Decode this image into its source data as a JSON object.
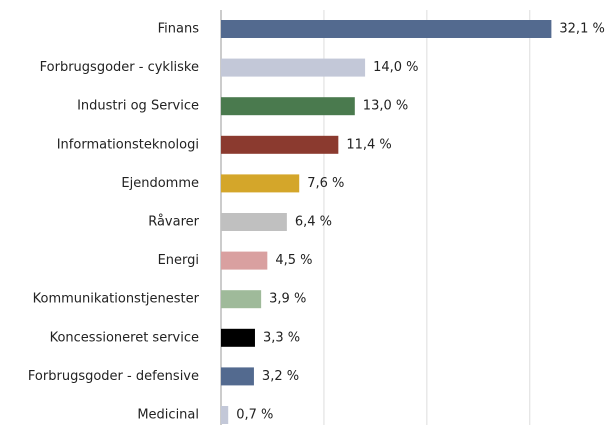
{
  "chart_data": {
    "type": "bar",
    "orientation": "horizontal",
    "categories": [
      "Finans",
      "Forbrugsgoder - cykliske",
      "Industri og Service",
      "Informationsteknologi",
      "Ejendomme",
      "Råvarer",
      "Energi",
      "Kommunikationstjenester",
      "Koncessioneret service",
      "Forbrugsgoder - defensive",
      "Medicinal"
    ],
    "values": [
      32.1,
      14.0,
      13.0,
      11.4,
      7.6,
      6.4,
      4.5,
      3.9,
      3.3,
      3.2,
      0.7
    ],
    "value_labels": [
      "32,1 %",
      "14,0 %",
      "13,0 %",
      "11,4 %",
      "7,6 %",
      "6,4 %",
      "4,5 %",
      "3,9 %",
      "3,3 %",
      "3,2 %",
      "0,7 %"
    ],
    "colors": [
      "#536a8f",
      "#c3c8d8",
      "#4a7a4e",
      "#8b3a2f",
      "#d4a62a",
      "#c0c0c0",
      "#d9a0a0",
      "#9fba9a",
      "#000000",
      "#536a8f",
      "#c3c8d8"
    ],
    "xlim": [
      0,
      37.6
    ],
    "xticks": [
      0,
      10,
      20,
      30
    ],
    "grid": true
  }
}
